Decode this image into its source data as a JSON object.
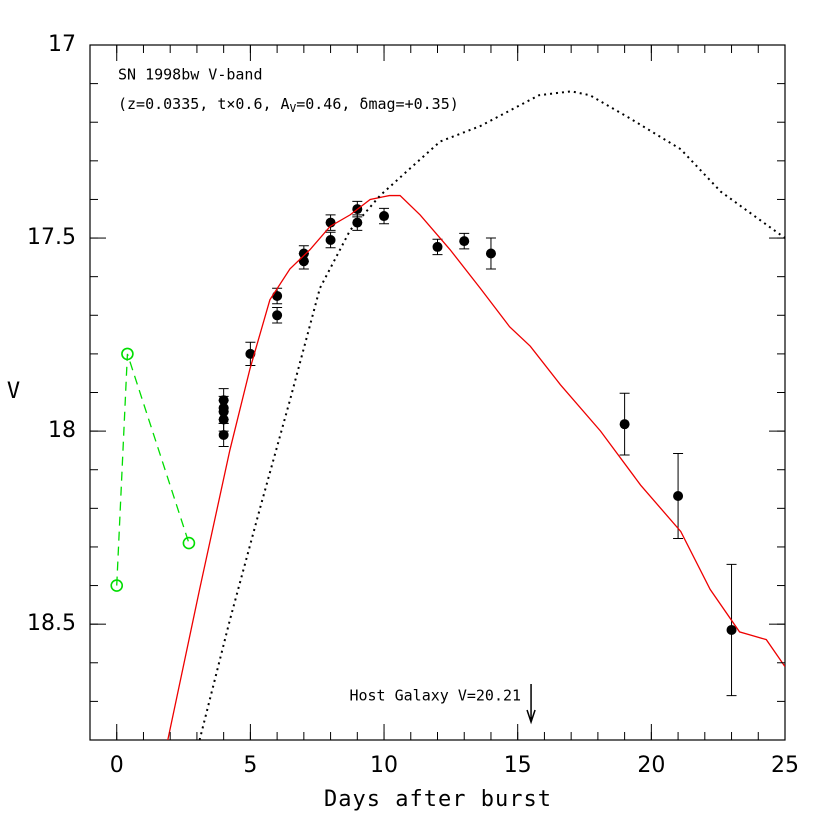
{
  "chart_data": {
    "type": "scatter",
    "xlabel": "Days after burst",
    "ylabel": "V",
    "xlim": [
      -1,
      25
    ],
    "xticks": [
      0,
      5,
      10,
      15,
      20,
      25
    ],
    "xminor": 1,
    "ylim": [
      17,
      18.8
    ],
    "yticks": [
      17,
      17.5,
      18,
      18.5
    ],
    "yminor": 0.1,
    "invert_y": true,
    "annotation": {
      "line1": "SN 1998bw V-band",
      "pre": "(z=0.0335, t×0.6, A",
      "sub": "V",
      "post": "=0.46, δmag=+0.35)"
    },
    "host_limit": {
      "label": "Host Galaxy V=20.21",
      "x": 15.5
    },
    "series": [
      {
        "kind": "points",
        "color": "#000000",
        "x": [
          4,
          4,
          4,
          4,
          4,
          5,
          6,
          6,
          7,
          7,
          8,
          8,
          9,
          9,
          10,
          12,
          13,
          14,
          19,
          21,
          23
        ],
        "values": [
          17.92,
          17.94,
          17.95,
          17.97,
          18.01,
          17.8,
          17.65,
          17.7,
          17.54,
          17.56,
          17.46,
          17.505,
          17.425,
          17.46,
          17.443,
          17.523,
          17.508,
          17.54,
          17.982,
          18.168,
          18.515
        ],
        "errors": [
          0.03,
          0.03,
          0.03,
          0.03,
          0.03,
          0.03,
          0.02,
          0.02,
          0.02,
          0.02,
          0.02,
          0.02,
          0.02,
          0.02,
          0.02,
          0.02,
          0.02,
          0.04,
          0.08,
          0.11,
          0.17
        ]
      },
      {
        "kind": "dashed-circles",
        "color": "#00dd00",
        "x": [
          0,
          0.4,
          2.7
        ],
        "values": [
          18.4,
          17.8,
          18.29
        ]
      },
      {
        "kind": "solid",
        "color": "#ee0000",
        "x": [
          1.91,
          3.1,
          4.23,
          4.98,
          5.73,
          6.48,
          7.23,
          7.98,
          8.73,
          9.48,
          10.2,
          10.6,
          11.35,
          12.47,
          13.6,
          14.7,
          15.47,
          16.6,
          18.1,
          19.6,
          21.1,
          22.2,
          23.3,
          24.3,
          25
        ],
        "values": [
          18.8,
          18.41,
          18.05,
          17.84,
          17.66,
          17.58,
          17.53,
          17.47,
          17.44,
          17.4,
          17.39,
          17.39,
          17.44,
          17.53,
          17.63,
          17.73,
          17.78,
          17.88,
          18.0,
          18.14,
          18.26,
          18.41,
          18.52,
          18.54,
          18.61
        ]
      },
      {
        "kind": "dotted",
        "color": "#000000",
        "x": [
          3.1,
          4.23,
          5.36,
          6.48,
          7.6,
          8.73,
          9.85,
          10.97,
          12.1,
          13.6,
          14.7,
          15.8,
          17.0,
          17.7,
          19.2,
          21.1,
          22.6,
          25
        ],
        "values": [
          18.8,
          18.49,
          18.2,
          17.92,
          17.63,
          17.48,
          17.39,
          17.32,
          17.25,
          17.21,
          17.17,
          17.13,
          17.12,
          17.13,
          17.19,
          17.27,
          17.38,
          17.5
        ]
      }
    ]
  }
}
